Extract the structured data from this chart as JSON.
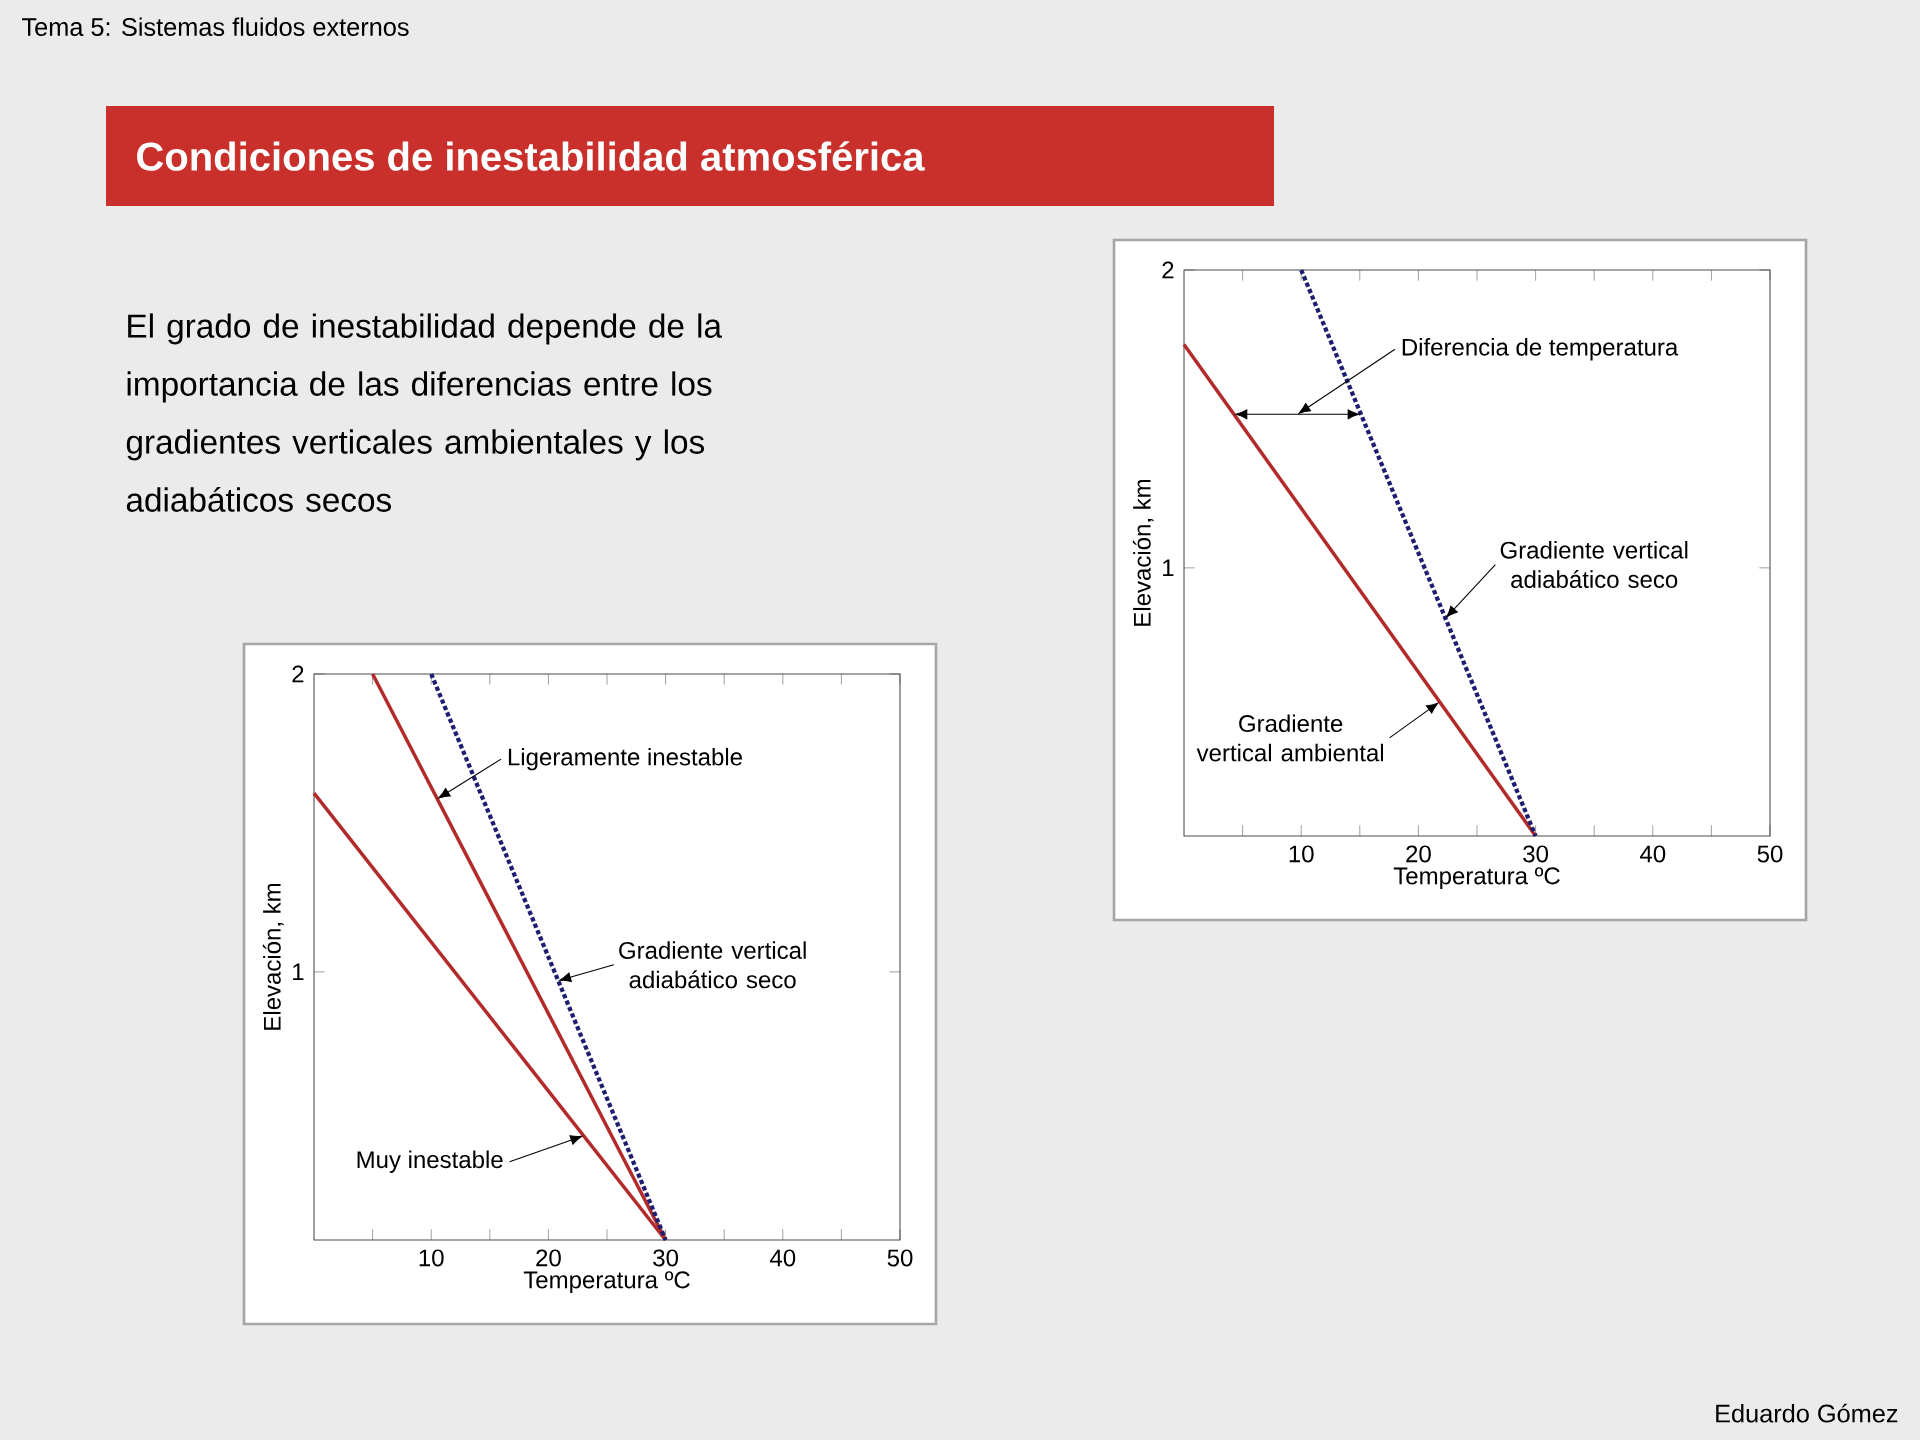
{
  "chart_data": [
    {
      "type": "line",
      "title": "Condiciones de inestabilidad atmosférica",
      "subtitle": "El grado de inestabilidad depende de la importancia de las diferencias entre los gradientes verticales ambientales y los adiabáticos secos",
      "xlabel": "Temperatura ºC",
      "ylabel": "Elevación, km",
      "xlim": [
        0,
        50
      ],
      "ylim": [
        0.1,
        2
      ],
      "xticks": [
        {
          "value": 5,
          "label": null
        },
        10,
        {
          "value": 15,
          "label": null
        },
        20,
        {
          "value": 25,
          "label": null
        },
        30,
        {
          "value": 35,
          "label": null
        },
        40,
        {
          "value": 45,
          "label": null
        },
        50
      ],
      "yticks": [
        1,
        2
      ],
      "grid": false,
      "series": [
        {
          "color": "#b22a2a",
          "line_style": "solid",
          "x": [
            0,
            30
          ],
          "values": [
            1.6,
            0.1
          ]
        },
        {
          "color": "#b22a2a",
          "line_style": "solid",
          "x": [
            5,
            30
          ],
          "values": [
            2,
            0.1
          ]
        },
        {
          "color": "#1e1e70",
          "line_style": "dotted",
          "x": [
            10,
            30
          ],
          "values": [
            2,
            0.1
          ]
        }
      ],
      "annotations": [
        {
          "text": "Ligeramente inestable",
          "x": 10.5,
          "y": 1.58
        },
        {
          "text": "Gradiente vertical adiabático seco",
          "x": 20.8,
          "y": 0.97
        },
        {
          "text": "Muy inestable",
          "x": 23,
          "y": 0.45
        },
        "Tema 5: Sistemas fluidos externos",
        "Eduardo Gómez"
      ]
    },
    {
      "type": "line",
      "xlabel": "Temperatura ºC",
      "ylabel": "Elevación, km",
      "xlim": [
        0,
        50
      ],
      "ylim": [
        0.1,
        2
      ],
      "xticks": [
        {
          "value": 5,
          "label": null
        },
        10,
        {
          "value": 15,
          "label": null
        },
        20,
        {
          "value": 25,
          "label": null
        },
        30,
        {
          "value": 35,
          "label": null
        },
        40,
        {
          "value": 45,
          "label": null
        },
        50
      ],
      "yticks": [
        1,
        2
      ],
      "grid": false,
      "series": [
        {
          "color": "#b22a2a",
          "line_style": "solid",
          "x": [
            0,
            30
          ],
          "values": [
            1.75,
            0.1
          ]
        },
        {
          "color": "#1e1e70",
          "line_style": "dotted",
          "x": [
            10,
            30
          ],
          "values": [
            2,
            0.1
          ]
        }
      ],
      "annotations": [
        "Diferencia de temperatura",
        {
          "text": "Gradiente vertical adiabático seco",
          "x": 22.3,
          "y": 0.83
        },
        {
          "text": "Gradiente vertical ambiental",
          "x": 21.8,
          "y": 0.55
        }
      ]
    }
  ]
}
